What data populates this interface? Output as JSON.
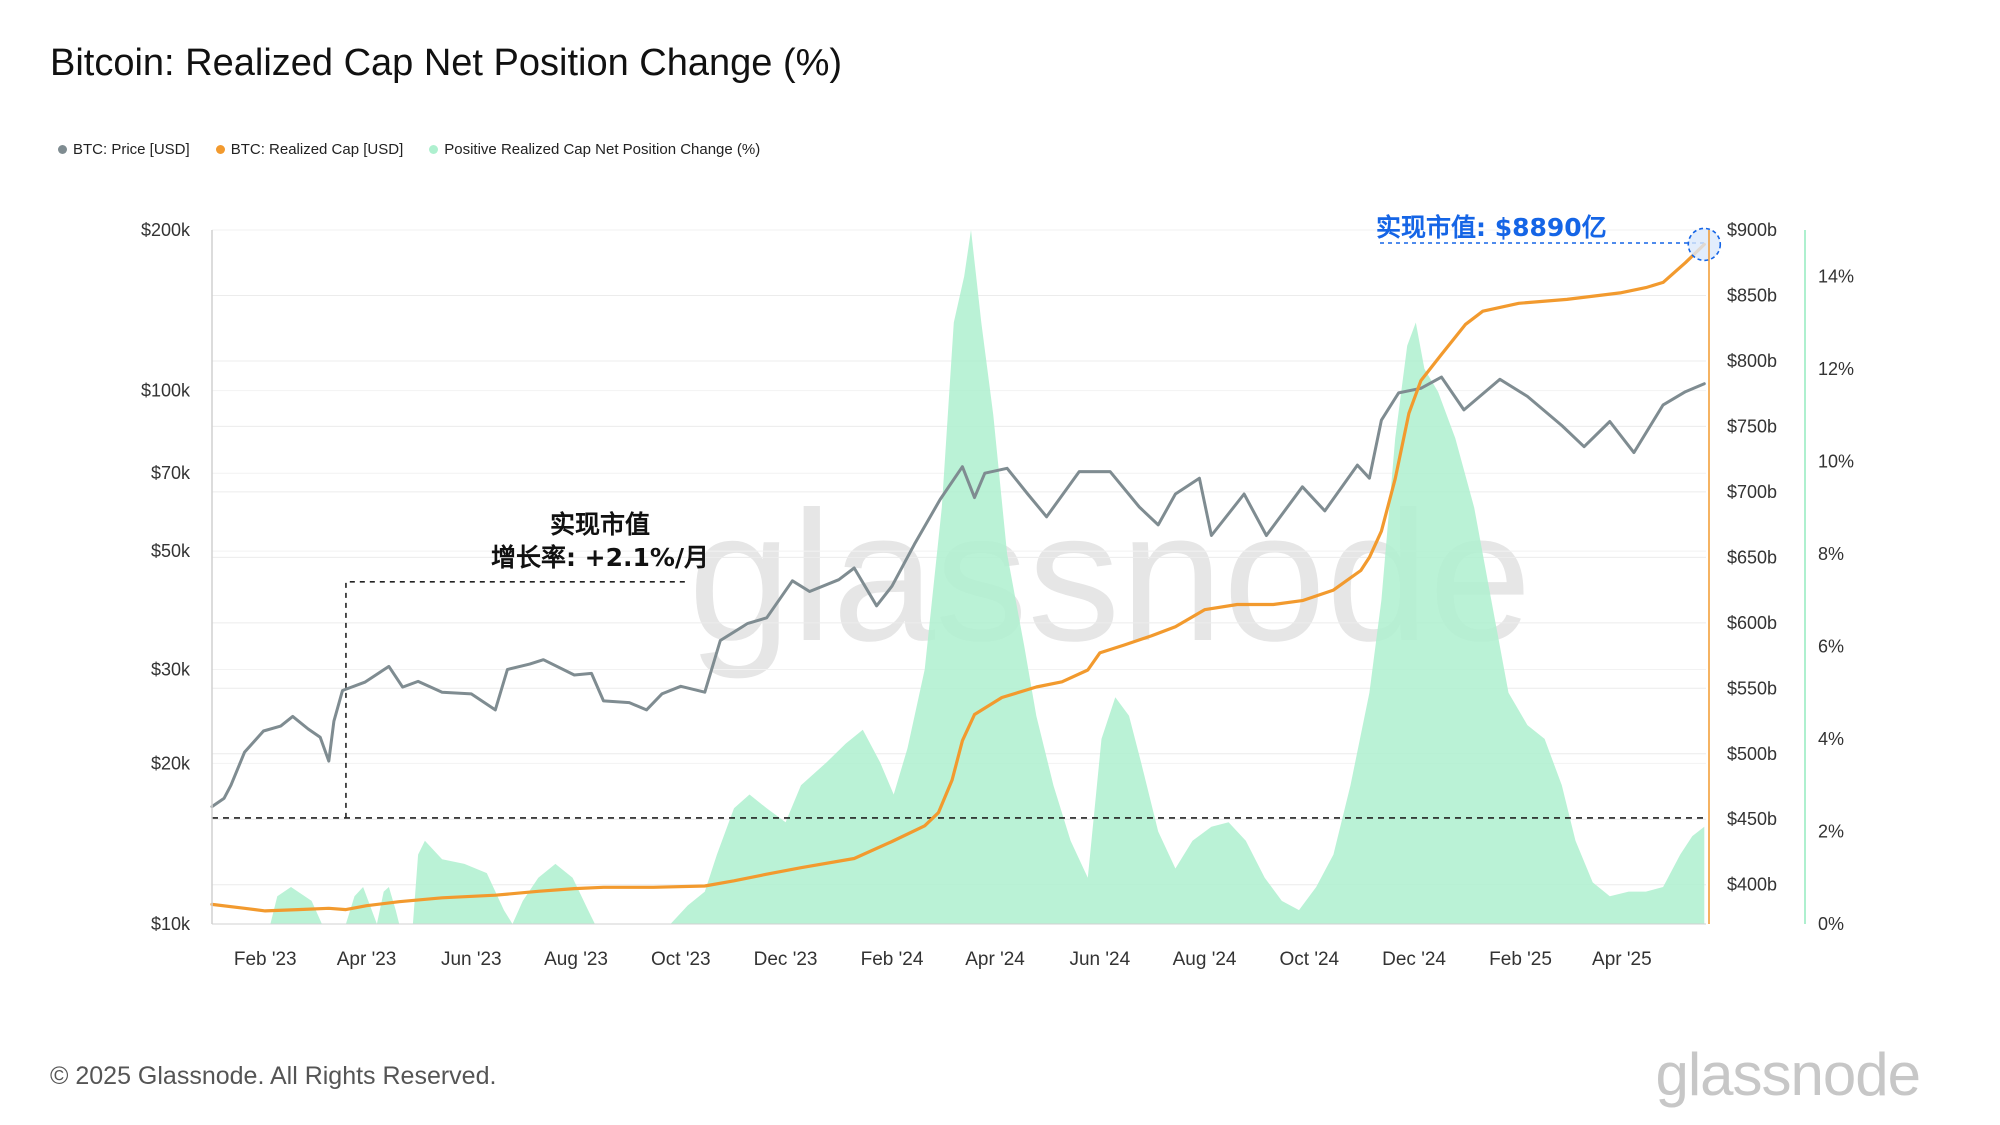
{
  "title": "Bitcoin: Realized Cap Net Position Change (%)",
  "legend": [
    {
      "label": "BTC: Price [USD]",
      "color": "#7f8c91"
    },
    {
      "label": "BTC: Realized Cap [USD]",
      "color": "#f29a2e"
    },
    {
      "label": "Positive Realized Cap Net Position Change (%)",
      "color": "#aef0cf"
    }
  ],
  "footer": "© 2025 Glassnode. All Rights Reserved.",
  "brand": "glassnode",
  "annotations": {
    "growth_line1": "实现市值",
    "growth_line2": "增长率: +2.1%/月",
    "current": "实现市值: $8890亿"
  },
  "chart_data": {
    "type": "line",
    "title": "Bitcoin: Realized Cap Net Position Change (%)",
    "x_tick_labels": [
      "Feb '23",
      "Apr '23",
      "Jun '23",
      "Aug '23",
      "Oct '23",
      "Dec '23",
      "Feb '24",
      "Apr '24",
      "Jun '24",
      "Aug '24",
      "Oct '24",
      "Dec '24",
      "Feb '25",
      "Apr '25"
    ],
    "x_tick_dates": [
      "2023-02-01",
      "2023-04-01",
      "2023-06-01",
      "2023-08-01",
      "2023-10-01",
      "2023-12-01",
      "2024-02-01",
      "2024-04-01",
      "2024-06-01",
      "2024-08-01",
      "2024-10-01",
      "2024-12-01",
      "2025-02-01",
      "2025-04-01"
    ],
    "xlim": [
      "2023-01-01",
      "2025-05-20"
    ],
    "axes": {
      "price": {
        "scale": "log",
        "ylim": [
          10000,
          200000
        ],
        "tick_values": [
          10000,
          20000,
          30000,
          50000,
          70000,
          100000,
          200000
        ],
        "tick_labels": [
          "$10k",
          "$20k",
          "$30k",
          "$50k",
          "$70k",
          "$100k",
          "$200k"
        ]
      },
      "realized_cap": {
        "scale": "linear",
        "ylim": [
          370,
          900
        ],
        "unit": "billion USD",
        "tick_values": [
          400,
          450,
          500,
          550,
          600,
          650,
          700,
          750,
          800,
          850,
          900
        ],
        "tick_labels": [
          "$400b",
          "$450b",
          "$500b",
          "$550b",
          "$600b",
          "$650b",
          "$700b",
          "$750b",
          "$800b",
          "$850b",
          "$900b"
        ]
      },
      "net_position_change": {
        "scale": "linear",
        "ylim": [
          0,
          15
        ],
        "unit": "%",
        "tick_values": [
          0,
          2,
          4,
          6,
          8,
          10,
          12,
          14
        ],
        "tick_labels": [
          "0%",
          "2%",
          "4%",
          "6%",
          "8%",
          "10%",
          "12%",
          "14%"
        ]
      }
    },
    "series": [
      {
        "name": "BTC: Price [USD]",
        "axis": "price",
        "color": "#7f8c91",
        "points": [
          [
            "2023-01-01",
            16600
          ],
          [
            "2023-01-08",
            17200
          ],
          [
            "2023-01-12",
            18200
          ],
          [
            "2023-01-20",
            21000
          ],
          [
            "2023-01-31",
            23000
          ],
          [
            "2023-02-10",
            23500
          ],
          [
            "2023-02-17",
            24500
          ],
          [
            "2023-02-26",
            23200
          ],
          [
            "2023-03-05",
            22400
          ],
          [
            "2023-03-10",
            20200
          ],
          [
            "2023-03-13",
            24000
          ],
          [
            "2023-03-18",
            27400
          ],
          [
            "2023-03-31",
            28400
          ],
          [
            "2023-04-14",
            30400
          ],
          [
            "2023-04-22",
            27800
          ],
          [
            "2023-05-01",
            28500
          ],
          [
            "2023-05-15",
            27200
          ],
          [
            "2023-06-01",
            27000
          ],
          [
            "2023-06-15",
            25200
          ],
          [
            "2023-06-22",
            30000
          ],
          [
            "2023-07-05",
            30700
          ],
          [
            "2023-07-13",
            31300
          ],
          [
            "2023-07-31",
            29300
          ],
          [
            "2023-08-10",
            29500
          ],
          [
            "2023-08-17",
            26200
          ],
          [
            "2023-09-01",
            26000
          ],
          [
            "2023-09-11",
            25200
          ],
          [
            "2023-09-20",
            27000
          ],
          [
            "2023-10-01",
            27900
          ],
          [
            "2023-10-15",
            27200
          ],
          [
            "2023-10-24",
            34000
          ],
          [
            "2023-11-09",
            36600
          ],
          [
            "2023-11-20",
            37500
          ],
          [
            "2023-12-05",
            44000
          ],
          [
            "2023-12-15",
            42000
          ],
          [
            "2024-01-01",
            44200
          ],
          [
            "2024-01-10",
            46500
          ],
          [
            "2024-01-23",
            39500
          ],
          [
            "2024-02-01",
            43000
          ],
          [
            "2024-02-14",
            51500
          ],
          [
            "2024-02-29",
            62500
          ],
          [
            "2024-03-13",
            72000
          ],
          [
            "2024-03-20",
            63000
          ],
          [
            "2024-03-26",
            70000
          ],
          [
            "2024-04-08",
            71500
          ],
          [
            "2024-04-20",
            64000
          ],
          [
            "2024-05-01",
            58000
          ],
          [
            "2024-05-20",
            70500
          ],
          [
            "2024-06-07",
            70500
          ],
          [
            "2024-06-24",
            60500
          ],
          [
            "2024-07-05",
            56000
          ],
          [
            "2024-07-15",
            64000
          ],
          [
            "2024-07-29",
            68500
          ],
          [
            "2024-08-05",
            53500
          ],
          [
            "2024-08-24",
            64000
          ],
          [
            "2024-09-06",
            53500
          ],
          [
            "2024-09-27",
            66000
          ],
          [
            "2024-10-10",
            59500
          ],
          [
            "2024-10-29",
            72500
          ],
          [
            "2024-11-05",
            68500
          ],
          [
            "2024-11-12",
            88000
          ],
          [
            "2024-11-22",
            99000
          ],
          [
            "2024-12-05",
            101000
          ],
          [
            "2024-12-17",
            106000
          ],
          [
            "2024-12-30",
            92000
          ],
          [
            "2025-01-20",
            105000
          ],
          [
            "2025-02-05",
            97500
          ],
          [
            "2025-02-25",
            86000
          ],
          [
            "2025-03-10",
            78500
          ],
          [
            "2025-03-25",
            87500
          ],
          [
            "2025-04-08",
            76500
          ],
          [
            "2025-04-25",
            94000
          ],
          [
            "2025-05-08",
            99500
          ],
          [
            "2025-05-19",
            103000
          ]
        ]
      },
      {
        "name": "BTC: Realized Cap [USD]",
        "axis": "realized_cap",
        "color": "#f29a2e",
        "points": [
          [
            "2023-01-01",
            385
          ],
          [
            "2023-01-20",
            382
          ],
          [
            "2023-02-01",
            380
          ],
          [
            "2023-02-20",
            381
          ],
          [
            "2023-03-10",
            382
          ],
          [
            "2023-03-20",
            381
          ],
          [
            "2023-04-01",
            384
          ],
          [
            "2023-04-20",
            387
          ],
          [
            "2023-05-15",
            390
          ],
          [
            "2023-06-15",
            392
          ],
          [
            "2023-07-10",
            395
          ],
          [
            "2023-07-31",
            397
          ],
          [
            "2023-08-17",
            398
          ],
          [
            "2023-09-15",
            398
          ],
          [
            "2023-10-15",
            399
          ],
          [
            "2023-11-01",
            403
          ],
          [
            "2023-11-20",
            408
          ],
          [
            "2023-12-10",
            413
          ],
          [
            "2024-01-10",
            420
          ],
          [
            "2024-02-01",
            433
          ],
          [
            "2024-02-20",
            445
          ],
          [
            "2024-02-28",
            455
          ],
          [
            "2024-03-07",
            480
          ],
          [
            "2024-03-13",
            510
          ],
          [
            "2024-03-20",
            530
          ],
          [
            "2024-04-05",
            543
          ],
          [
            "2024-04-25",
            551
          ],
          [
            "2024-05-10",
            555
          ],
          [
            "2024-05-25",
            564
          ],
          [
            "2024-06-01",
            577
          ],
          [
            "2024-06-15",
            583
          ],
          [
            "2024-07-01",
            590
          ],
          [
            "2024-07-15",
            597
          ],
          [
            "2024-08-01",
            610
          ],
          [
            "2024-08-20",
            614
          ],
          [
            "2024-09-10",
            614
          ],
          [
            "2024-09-27",
            617
          ],
          [
            "2024-10-15",
            625
          ],
          [
            "2024-10-31",
            640
          ],
          [
            "2024-11-05",
            650
          ],
          [
            "2024-11-12",
            670
          ],
          [
            "2024-11-20",
            710
          ],
          [
            "2024-11-28",
            760
          ],
          [
            "2024-12-05",
            785
          ],
          [
            "2024-12-17",
            805
          ],
          [
            "2024-12-31",
            828
          ],
          [
            "2025-01-10",
            838
          ],
          [
            "2025-01-31",
            844
          ],
          [
            "2025-02-28",
            847
          ],
          [
            "2025-03-31",
            852
          ],
          [
            "2025-04-15",
            856
          ],
          [
            "2025-04-25",
            860
          ],
          [
            "2025-05-08",
            875
          ],
          [
            "2025-05-19",
            889
          ]
        ]
      },
      {
        "name": "Positive Realized Cap Net Position Change (%)",
        "axis": "net_position_change",
        "color": "#aef0cf",
        "points": [
          [
            "2023-01-01",
            0
          ],
          [
            "2023-02-04",
            0
          ],
          [
            "2023-02-08",
            0.6
          ],
          [
            "2023-02-16",
            0.8
          ],
          [
            "2023-02-28",
            0.5
          ],
          [
            "2023-03-06",
            0
          ],
          [
            "2023-03-20",
            0
          ],
          [
            "2023-03-25",
            0.6
          ],
          [
            "2023-03-30",
            0.8
          ],
          [
            "2023-04-03",
            0.4
          ],
          [
            "2023-04-07",
            0
          ],
          [
            "2023-04-11",
            0.7
          ],
          [
            "2023-04-14",
            0.8
          ],
          [
            "2023-04-18",
            0.3
          ],
          [
            "2023-04-20",
            0
          ],
          [
            "2023-04-28",
            0
          ],
          [
            "2023-05-01",
            1.5
          ],
          [
            "2023-05-05",
            1.8
          ],
          [
            "2023-05-15",
            1.4
          ],
          [
            "2023-05-28",
            1.3
          ],
          [
            "2023-06-10",
            1.1
          ],
          [
            "2023-06-20",
            0.3
          ],
          [
            "2023-06-25",
            0
          ],
          [
            "2023-07-01",
            0.5
          ],
          [
            "2023-07-10",
            1.0
          ],
          [
            "2023-07-20",
            1.3
          ],
          [
            "2023-07-30",
            1.0
          ],
          [
            "2023-08-08",
            0.3
          ],
          [
            "2023-08-12",
            0
          ],
          [
            "2023-09-25",
            0
          ],
          [
            "2023-10-05",
            0.4
          ],
          [
            "2023-10-15",
            0.7
          ],
          [
            "2023-10-22",
            1.5
          ],
          [
            "2023-11-01",
            2.5
          ],
          [
            "2023-11-10",
            2.8
          ],
          [
            "2023-11-20",
            2.5
          ],
          [
            "2023-12-01",
            2.2
          ],
          [
            "2023-12-10",
            3.0
          ],
          [
            "2023-12-25",
            3.5
          ],
          [
            "2024-01-05",
            3.9
          ],
          [
            "2024-01-15",
            4.2
          ],
          [
            "2024-01-25",
            3.5
          ],
          [
            "2024-02-02",
            2.8
          ],
          [
            "2024-02-10",
            3.8
          ],
          [
            "2024-02-20",
            5.5
          ],
          [
            "2024-03-01",
            9.0
          ],
          [
            "2024-03-08",
            13.0
          ],
          [
            "2024-03-14",
            14.0
          ],
          [
            "2024-03-18",
            15.0
          ],
          [
            "2024-03-24",
            13.0
          ],
          [
            "2024-03-31",
            11.0
          ],
          [
            "2024-04-08",
            8.0
          ],
          [
            "2024-04-18",
            6.0
          ],
          [
            "2024-04-25",
            4.5
          ],
          [
            "2024-05-05",
            3.0
          ],
          [
            "2024-05-15",
            1.8
          ],
          [
            "2024-05-25",
            1.0
          ],
          [
            "2024-06-02",
            4.0
          ],
          [
            "2024-06-10",
            4.9
          ],
          [
            "2024-06-18",
            4.5
          ],
          [
            "2024-06-25",
            3.5
          ],
          [
            "2024-07-05",
            2.0
          ],
          [
            "2024-07-15",
            1.2
          ],
          [
            "2024-07-25",
            1.8
          ],
          [
            "2024-08-05",
            2.1
          ],
          [
            "2024-08-15",
            2.2
          ],
          [
            "2024-08-25",
            1.8
          ],
          [
            "2024-09-05",
            1.0
          ],
          [
            "2024-09-15",
            0.5
          ],
          [
            "2024-09-25",
            0.3
          ],
          [
            "2024-10-05",
            0.8
          ],
          [
            "2024-10-15",
            1.5
          ],
          [
            "2024-10-25",
            3.0
          ],
          [
            "2024-11-05",
            5.0
          ],
          [
            "2024-11-12",
            7.0
          ],
          [
            "2024-11-20",
            10.5
          ],
          [
            "2024-11-27",
            12.5
          ],
          [
            "2024-12-02",
            13.0
          ],
          [
            "2024-12-07",
            12.0
          ],
          [
            "2024-12-15",
            11.5
          ],
          [
            "2024-12-25",
            10.5
          ],
          [
            "2025-01-05",
            9.0
          ],
          [
            "2025-01-15",
            7.0
          ],
          [
            "2025-01-25",
            5.0
          ],
          [
            "2025-02-05",
            4.3
          ],
          [
            "2025-02-15",
            4.0
          ],
          [
            "2025-02-25",
            3.0
          ],
          [
            "2025-03-05",
            1.8
          ],
          [
            "2025-03-15",
            0.9
          ],
          [
            "2025-03-25",
            0.6
          ],
          [
            "2025-04-05",
            0.7
          ],
          [
            "2025-04-15",
            0.7
          ],
          [
            "2025-04-25",
            0.8
          ],
          [
            "2025-05-05",
            1.5
          ],
          [
            "2025-05-12",
            1.9
          ],
          [
            "2025-05-19",
            2.1
          ]
        ]
      }
    ],
    "reference_lines": {
      "baseline_realized_cap": 451,
      "growth_box_start": "2023-03-20",
      "growth_box_end": "2023-10-05",
      "growth_box_price": 43800
    },
    "highlight": {
      "date": "2025-05-19",
      "realized_cap": 889
    },
    "watermark": "glassnode"
  }
}
